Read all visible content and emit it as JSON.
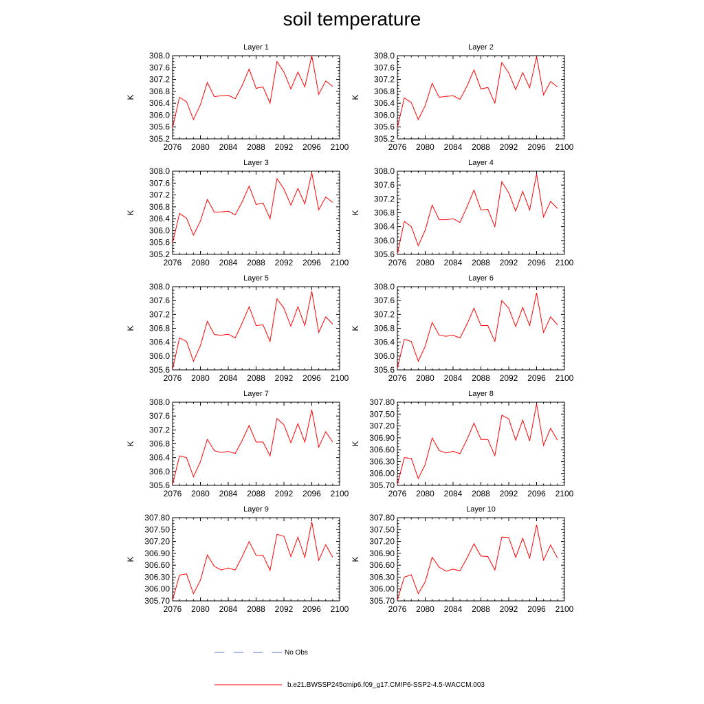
{
  "title": "soil temperature",
  "chart_data": {
    "type": "line",
    "ylabel": "K",
    "x": [
      2076,
      2077,
      2078,
      2079,
      2080,
      2081,
      2082,
      2083,
      2084,
      2085,
      2086,
      2087,
      2088,
      2089,
      2090,
      2091,
      2092,
      2093,
      2094,
      2095,
      2096,
      2097,
      2098,
      2099
    ],
    "x_ticks": [
      2076,
      2080,
      2084,
      2088,
      2092,
      2096,
      2100
    ],
    "xlim": [
      2076,
      2100
    ],
    "series_color": "#ff0000",
    "panels": [
      {
        "title": "Layer 1",
        "ylim": [
          305.2,
          308.0
        ],
        "yticks": [
          "305.2",
          "305.6",
          "306.0",
          "306.4",
          "306.8",
          "307.2",
          "307.6",
          "308.0"
        ],
        "values": [
          305.58,
          306.6,
          306.45,
          305.85,
          306.35,
          307.1,
          306.62,
          306.65,
          306.67,
          306.55,
          307.0,
          307.55,
          306.9,
          306.95,
          306.4,
          307.8,
          307.45,
          306.88,
          307.45,
          306.95,
          308.0,
          306.7,
          307.15,
          306.97
        ]
      },
      {
        "title": "Layer 2",
        "ylim": [
          305.2,
          308.0
        ],
        "yticks": [
          "305.2",
          "305.6",
          "306.0",
          "306.4",
          "306.8",
          "307.2",
          "307.6",
          "308.0"
        ],
        "values": [
          305.58,
          306.58,
          306.42,
          305.85,
          306.32,
          307.07,
          306.6,
          306.63,
          306.65,
          306.53,
          306.98,
          307.52,
          306.88,
          306.93,
          306.4,
          307.77,
          307.42,
          306.86,
          307.43,
          306.92,
          307.97,
          306.68,
          307.13,
          306.95
        ]
      },
      {
        "title": "Layer 3",
        "ylim": [
          305.2,
          308.0
        ],
        "yticks": [
          "305.2",
          "305.6",
          "306.0",
          "306.4",
          "306.8",
          "307.2",
          "307.6",
          "308.0"
        ],
        "values": [
          305.58,
          306.58,
          306.42,
          305.85,
          306.32,
          307.05,
          306.62,
          306.63,
          306.65,
          306.53,
          306.97,
          307.5,
          306.88,
          306.93,
          306.4,
          307.75,
          307.4,
          306.86,
          307.42,
          306.9,
          307.95,
          306.7,
          307.13,
          306.95
        ]
      },
      {
        "title": "Layer 4",
        "ylim": [
          305.6,
          308.0
        ],
        "yticks": [
          "305.6",
          "306.0",
          "306.4",
          "306.8",
          "307.2",
          "307.6",
          "308.0"
        ],
        "values": [
          305.62,
          306.55,
          306.4,
          305.85,
          306.3,
          307.02,
          306.6,
          306.6,
          306.63,
          306.52,
          306.97,
          307.45,
          306.88,
          306.9,
          306.4,
          307.7,
          307.38,
          306.85,
          307.42,
          306.88,
          307.92,
          306.68,
          307.13,
          306.92
        ]
      },
      {
        "title": "Layer 5",
        "ylim": [
          305.6,
          308.0
        ],
        "yticks": [
          "305.6",
          "306.0",
          "306.4",
          "306.8",
          "307.2",
          "307.6",
          "308.0"
        ],
        "values": [
          305.62,
          306.52,
          306.42,
          305.85,
          306.3,
          307.0,
          306.62,
          306.6,
          306.63,
          306.52,
          306.95,
          307.42,
          306.88,
          306.9,
          306.42,
          307.65,
          307.38,
          306.86,
          307.42,
          306.88,
          307.87,
          306.68,
          307.13,
          306.92
        ]
      },
      {
        "title": "Layer 6",
        "ylim": [
          305.6,
          308.0
        ],
        "yticks": [
          "305.6",
          "306.0",
          "306.4",
          "306.8",
          "307.2",
          "307.6",
          "308.0"
        ],
        "values": [
          305.65,
          306.48,
          306.42,
          305.85,
          306.28,
          306.97,
          306.6,
          306.57,
          306.6,
          306.52,
          306.92,
          307.38,
          306.88,
          306.88,
          306.42,
          307.6,
          307.38,
          306.85,
          307.4,
          306.88,
          307.82,
          306.68,
          307.13,
          306.9
        ]
      },
      {
        "title": "Layer 7",
        "ylim": [
          305.6,
          308.0
        ],
        "yticks": [
          "305.6",
          "306.0",
          "306.4",
          "306.8",
          "307.2",
          "307.6",
          "308.0"
        ],
        "values": [
          305.62,
          306.45,
          306.4,
          305.85,
          306.28,
          306.93,
          306.6,
          306.55,
          306.58,
          306.52,
          306.9,
          307.33,
          306.85,
          306.85,
          306.45,
          307.53,
          307.35,
          306.83,
          307.38,
          306.85,
          307.78,
          306.7,
          307.15,
          306.85
        ]
      },
      {
        "title": "Layer 8",
        "ylim": [
          305.7,
          307.8
        ],
        "yticks": [
          "305.70",
          "306.00",
          "306.30",
          "306.60",
          "306.90",
          "307.20",
          "307.50",
          "307.80"
        ],
        "values": [
          305.72,
          306.4,
          306.38,
          305.87,
          306.23,
          306.9,
          306.58,
          306.52,
          306.56,
          306.5,
          306.86,
          307.27,
          306.86,
          306.86,
          306.45,
          307.47,
          307.38,
          306.84,
          307.35,
          306.82,
          307.76,
          306.71,
          307.14,
          306.84
        ]
      },
      {
        "title": "Layer 9",
        "ylim": [
          305.7,
          307.8
        ],
        "yticks": [
          "305.70",
          "306.00",
          "306.30",
          "306.60",
          "306.90",
          "307.20",
          "307.50",
          "307.80"
        ],
        "values": [
          305.72,
          306.35,
          306.38,
          305.88,
          306.22,
          306.86,
          306.57,
          306.48,
          306.53,
          306.48,
          306.82,
          307.2,
          306.85,
          306.85,
          306.47,
          307.38,
          307.33,
          306.82,
          307.31,
          306.8,
          307.7,
          306.72,
          307.12,
          306.8
        ]
      },
      {
        "title": "Layer 10",
        "ylim": [
          305.7,
          307.8
        ],
        "yticks": [
          "305.70",
          "306.00",
          "306.30",
          "306.60",
          "306.90",
          "307.20",
          "307.50",
          "307.80"
        ],
        "values": [
          305.72,
          306.3,
          306.36,
          305.88,
          306.18,
          306.8,
          306.55,
          306.45,
          306.5,
          306.46,
          306.78,
          307.14,
          306.83,
          306.82,
          306.48,
          307.31,
          307.3,
          306.8,
          307.28,
          306.78,
          307.62,
          306.73,
          307.11,
          306.78
        ]
      }
    ],
    "legend": [
      {
        "label": "No Obs",
        "style": "dashed",
        "color": "#5a6fd6"
      },
      {
        "label": "b.e21.BWSSP245cmip6.f09_g17.CMIP6-SSP2-4.5-WACCM.003",
        "style": "solid",
        "color": "#ff0000"
      }
    ]
  }
}
